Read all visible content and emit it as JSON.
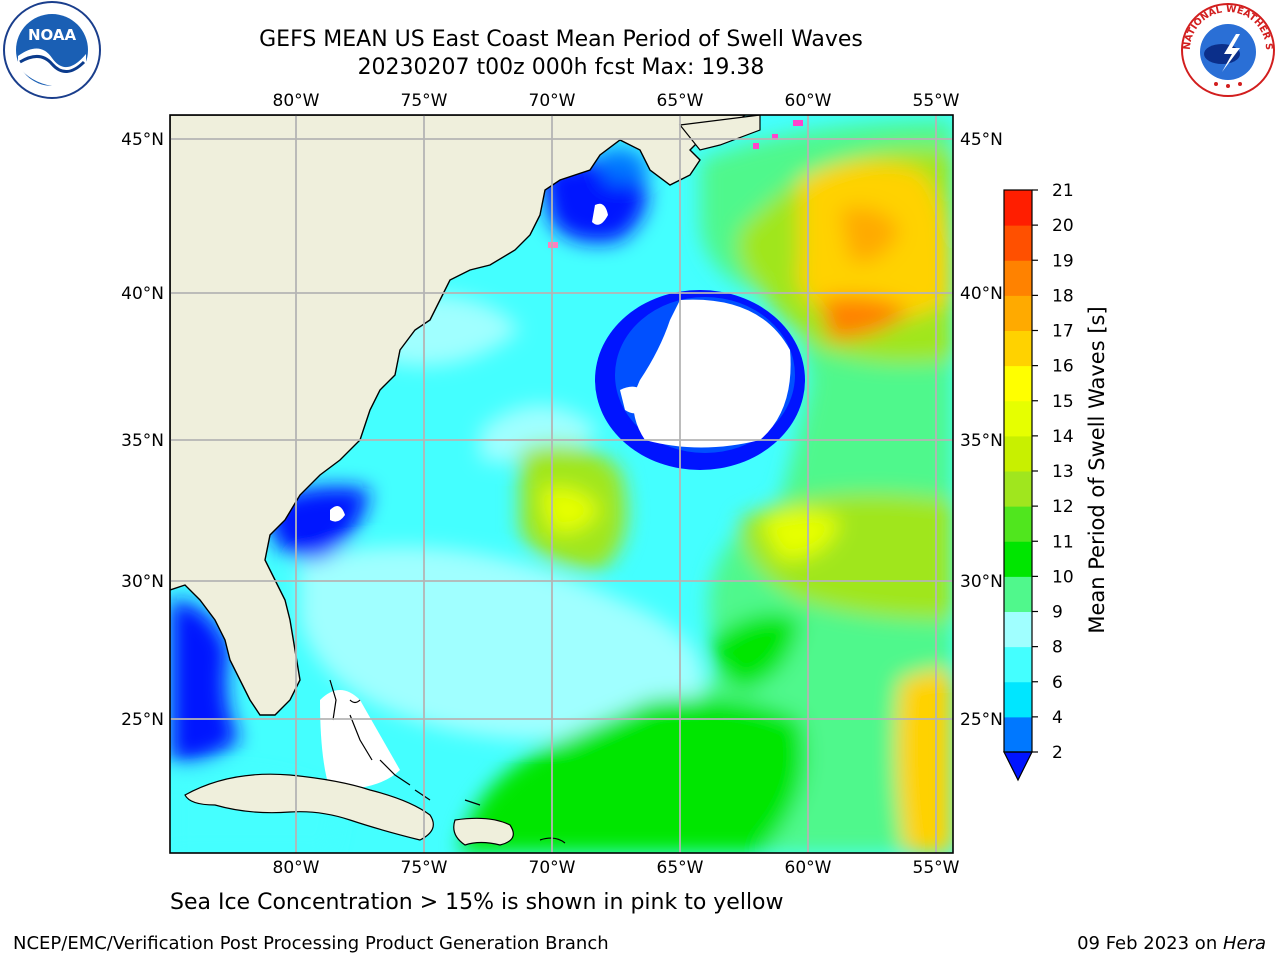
{
  "title_line1": "GEFS MEAN US East Coast Mean Period of Swell Waves",
  "title_line2": "20230207 t00z 000h fcst   Max: 19.38",
  "lon_labels": [
    "80°W",
    "75°W",
    "70°W",
    "65°W",
    "60°W",
    "55°W"
  ],
  "lat_labels": [
    "45°N",
    "40°N",
    "35°N",
    "30°N",
    "25°N"
  ],
  "colorbar": {
    "title": "Mean Period of Swell Waves [s]",
    "ticks": [
      "2",
      "4",
      "6",
      "8",
      "9",
      "10",
      "11",
      "12",
      "13",
      "14",
      "15",
      "16",
      "17",
      "18",
      "19",
      "20",
      "21"
    ],
    "colors": [
      "#0078ff",
      "#00e6ff",
      "#44ffff",
      "#a0ffff",
      "#50f88c",
      "#00e600",
      "#50e61e",
      "#a0e61e",
      "#c8f000",
      "#e6ff00",
      "#ffff00",
      "#ffd200",
      "#ffaa00",
      "#ff8200",
      "#ff5000",
      "#ff1e00"
    ],
    "extend_color": "#0014ff"
  },
  "logos": {
    "left": "noaa-logo",
    "right": "nws-logo"
  },
  "logo_text": {
    "noaa": "NOAA",
    "nws": "NATIONAL WEATHER SERVICE"
  },
  "caption": "Sea Ice Concentration > 15% is shown in pink to yellow",
  "footer_left": "NCEP/EMC/Verification Post Processing Product Generation Branch",
  "footer_date": "09 Feb 2023 on ",
  "footer_machine": "Hera"
}
